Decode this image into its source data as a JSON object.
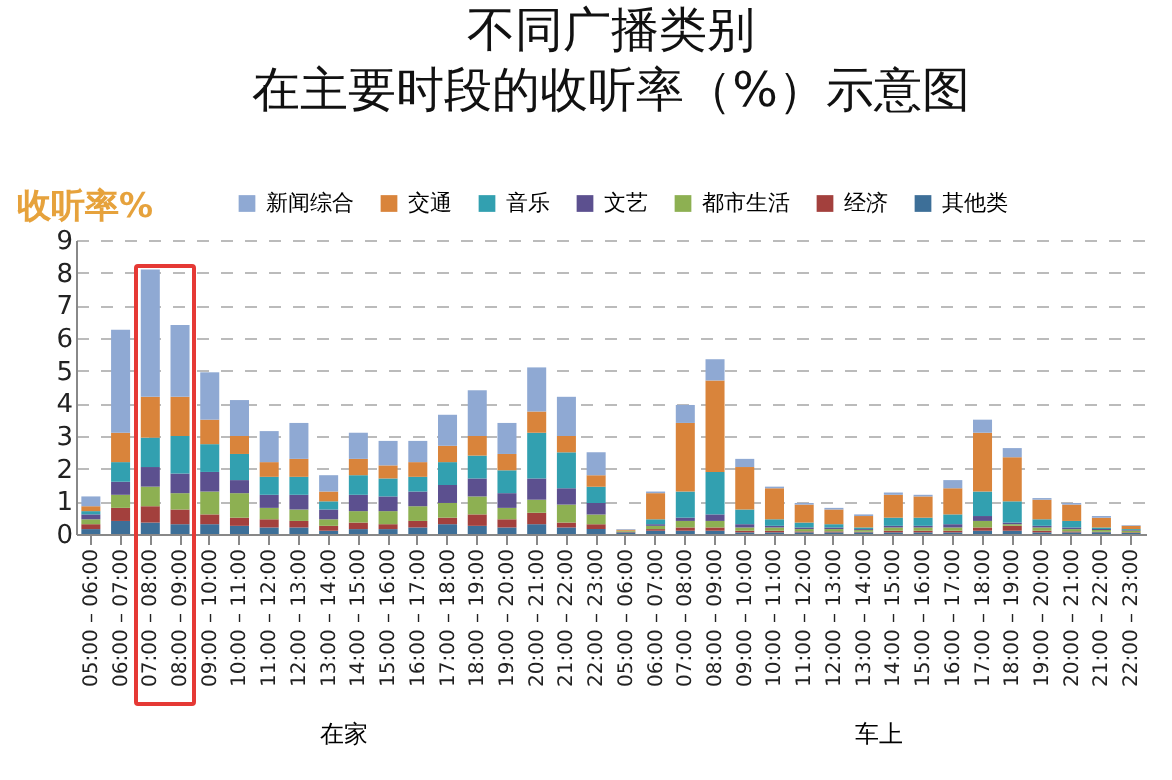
{
  "chart_data": {
    "type": "bar",
    "stacked": true,
    "title": "不同广播类别",
    "subtitle": "在主要时段的收听率（%）示意图",
    "ylabel": "收听率%",
    "categories": [
      "05:00 – 06:00",
      "06:00 – 07:00",
      "07:00 – 08:00",
      "08:00 – 09:00",
      "09:00 – 10:00",
      "10:00 – 11:00",
      "11:00 – 12:00",
      "12:00 – 13:00",
      "13:00 – 14:00",
      "14:00 – 15:00",
      "15:00 – 16:00",
      "16:00 – 17:00",
      "17:00 – 18:00",
      "18:00 – 19:00",
      "19:00 – 20:00",
      "20:00 – 21:00",
      "21:00 – 22:00",
      "22:00 – 23:00",
      "05:00 – 06:00",
      "06:00 – 07:00",
      "07:00 – 08:00",
      "08:00 – 09:00",
      "09:00 – 10:00",
      "10:00 – 11:00",
      "11:00 – 12:00",
      "12:00 – 13:00",
      "13:00 – 14:00",
      "14:00 – 15:00",
      "15:00 – 16:00",
      "16:00 – 17:00",
      "17:00 – 18:00",
      "18:00 – 19:00",
      "19:00 – 20:00",
      "20:00 – 21:00",
      "21:00 – 22:00",
      "22:00 – 23:00"
    ],
    "series": [
      {
        "name": "其他类",
        "color": "#3d6f98",
        "values": [
          0.15,
          0.4,
          0.35,
          0.3,
          0.3,
          0.25,
          0.2,
          0.2,
          0.1,
          0.15,
          0.15,
          0.2,
          0.3,
          0.25,
          0.2,
          0.3,
          0.2,
          0.15,
          0.05,
          0.1,
          0.1,
          0.1,
          0.05,
          0.05,
          0.05,
          0.05,
          0.05,
          0.05,
          0.05,
          0.05,
          0.1,
          0.1,
          0.05,
          0.05,
          0.05,
          0.03
        ]
      },
      {
        "name": "经济",
        "color": "#a3403d",
        "values": [
          0.15,
          0.4,
          0.5,
          0.45,
          0.3,
          0.25,
          0.25,
          0.2,
          0.15,
          0.2,
          0.15,
          0.2,
          0.2,
          0.35,
          0.25,
          0.35,
          0.15,
          0.15,
          0.02,
          0.05,
          0.1,
          0.1,
          0.05,
          0.05,
          0.03,
          0.03,
          0.02,
          0.05,
          0.05,
          0.05,
          0.1,
          0.15,
          0.05,
          0.03,
          0.02,
          0.02
        ]
      },
      {
        "name": "都市生活",
        "color": "#8db052",
        "values": [
          0.15,
          0.4,
          0.6,
          0.5,
          0.7,
          0.75,
          0.35,
          0.35,
          0.2,
          0.35,
          0.4,
          0.45,
          0.45,
          0.55,
          0.35,
          0.4,
          0.55,
          0.3,
          0.03,
          0.1,
          0.2,
          0.2,
          0.1,
          0.1,
          0.07,
          0.07,
          0.05,
          0.1,
          0.1,
          0.1,
          0.2,
          0.05,
          0.1,
          0.07,
          0.05,
          0.05
        ]
      },
      {
        "name": "文艺",
        "color": "#5c508f",
        "values": [
          0.15,
          0.4,
          0.6,
          0.6,
          0.6,
          0.4,
          0.4,
          0.45,
          0.3,
          0.5,
          0.45,
          0.45,
          0.55,
          0.55,
          0.45,
          0.65,
          0.5,
          0.35,
          0,
          0.05,
          0.1,
          0.2,
          0.1,
          0.05,
          0.05,
          0.05,
          0.03,
          0.05,
          0.05,
          0.1,
          0.15,
          0.05,
          0.05,
          0.05,
          0.03,
          0.02
        ]
      },
      {
        "name": "音乐",
        "color": "#32a0b0",
        "values": [
          0.1,
          0.6,
          0.9,
          1.15,
          0.85,
          0.8,
          0.55,
          0.55,
          0.25,
          0.6,
          0.55,
          0.45,
          0.7,
          0.7,
          0.7,
          1.4,
          1.1,
          0.5,
          0,
          0.15,
          0.8,
          1.3,
          0.45,
          0.2,
          0.15,
          0.1,
          0.05,
          0.25,
          0.25,
          0.3,
          0.75,
          0.65,
          0.2,
          0.2,
          0.05,
          0.03
        ]
      },
      {
        "name": "交通",
        "color": "#d9843b",
        "values": [
          0.15,
          0.9,
          1.25,
          1.2,
          0.75,
          0.55,
          0.45,
          0.55,
          0.3,
          0.5,
          0.4,
          0.45,
          0.5,
          0.6,
          0.5,
          0.65,
          0.5,
          0.35,
          0.03,
          0.8,
          2.1,
          2.8,
          1.3,
          0.95,
          0.55,
          0.45,
          0.35,
          0.7,
          0.65,
          0.8,
          1.8,
          1.35,
          0.6,
          0.5,
          0.3,
          0.1
        ]
      },
      {
        "name": "新闻综合",
        "color": "#8fa9d3",
        "values": [
          0.3,
          3.15,
          3.9,
          2.2,
          1.45,
          1.1,
          0.95,
          1.1,
          0.5,
          0.8,
          0.75,
          0.65,
          0.95,
          1.4,
          0.95,
          1.35,
          1.2,
          0.7,
          0.02,
          0.05,
          0.55,
          0.65,
          0.25,
          0.05,
          0.05,
          0.05,
          0.05,
          0.07,
          0.05,
          0.25,
          0.4,
          0.28,
          0.05,
          0.05,
          0.05,
          0.02
        ]
      }
    ],
    "ylim": [
      0,
      9
    ],
    "yticks": [
      0,
      1,
      2,
      3,
      4,
      5,
      6,
      7,
      8,
      9
    ],
    "grid": "y",
    "legend": "top",
    "annotations": [
      "在家",
      "车上"
    ]
  }
}
